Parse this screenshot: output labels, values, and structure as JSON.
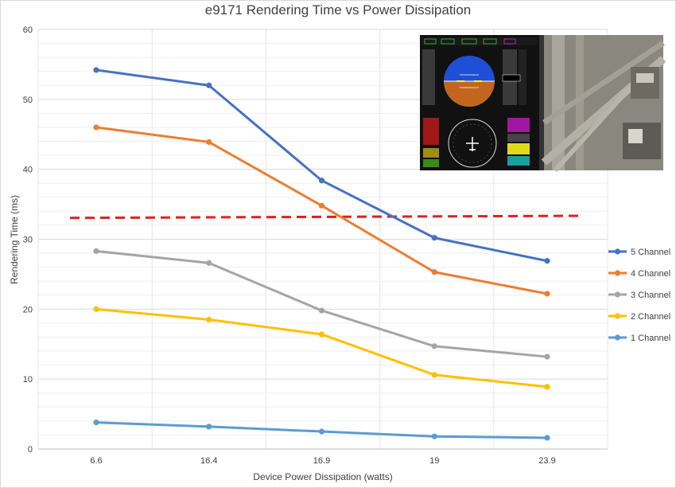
{
  "chart_data": {
    "type": "line",
    "title": "e9171 Rendering Time vs Power Dissipation",
    "xlabel": "Device Power Dissipation (watts)",
    "ylabel": "Rendering Time (ms)",
    "categories": [
      "6.6",
      "16.4",
      "16.9",
      "19",
      "23.9"
    ],
    "ylim": [
      0,
      60
    ],
    "yticks": [
      0,
      10,
      20,
      30,
      40,
      50,
      60
    ],
    "grid": true,
    "minor_grid": true,
    "legend_position": "right",
    "series": [
      {
        "name": "5 Channel",
        "color": "#4472C4",
        "values": [
          54.2,
          52.0,
          38.4,
          30.2,
          26.9
        ]
      },
      {
        "name": "4 Channel",
        "color": "#ED7D31",
        "values": [
          46.0,
          43.9,
          34.8,
          25.3,
          22.2
        ]
      },
      {
        "name": "3 Channel",
        "color": "#A5A5A5",
        "values": [
          28.3,
          26.6,
          19.8,
          14.7,
          13.2
        ]
      },
      {
        "name": "2 Channel",
        "color": "#FFC000",
        "values": [
          20.0,
          18.5,
          16.4,
          10.6,
          8.9
        ]
      },
      {
        "name": "1 Channel",
        "color": "#5B9BD5",
        "values": [
          3.8,
          3.2,
          2.5,
          1.8,
          1.6
        ]
      }
    ],
    "threshold": {
      "value": 33.2,
      "color": "#E02020",
      "style": "dashed"
    },
    "inset_image": "avionics-display-screenshot"
  }
}
